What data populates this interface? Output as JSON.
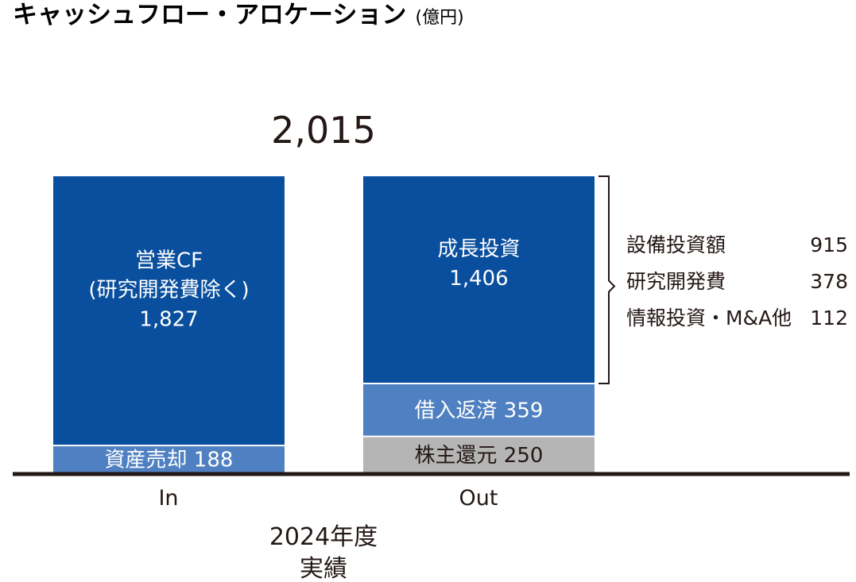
{
  "chart_data": {
    "type": "bar",
    "stacked": true,
    "title": "キャッシュフロー・アロケーション",
    "unit": "(億円)",
    "total_label": "2,015",
    "period": [
      "2024年度",
      "実績"
    ],
    "categories": [
      "In",
      "Out"
    ],
    "ylim": [
      0,
      2015
    ],
    "colors": {
      "dark_blue": "#0a4f9e",
      "light_blue": "#4f80c1",
      "gray": "#b5b5b5",
      "baseline": "#231815"
    },
    "stacks": [
      {
        "category": "In",
        "segments": [
          {
            "label": "資産売却",
            "value": 188,
            "value_label": "188",
            "color": "light_blue"
          },
          {
            "label_lines": [
              "営業CF",
              "(研究開発費除く)"
            ],
            "value": 1827,
            "value_label": "1,827",
            "color": "dark_blue"
          }
        ]
      },
      {
        "category": "Out",
        "segments": [
          {
            "label": "株主還元",
            "value": 250,
            "value_label": "250",
            "color": "gray"
          },
          {
            "label": "借入返済",
            "value": 359,
            "value_label": "359",
            "color": "light_blue"
          },
          {
            "label_lines": [
              "成長投資"
            ],
            "value": 1406,
            "value_label": "1,406",
            "color": "dark_blue"
          }
        ]
      }
    ],
    "breakdown": [
      {
        "label": "設備投資額",
        "value": 915,
        "value_label": "915"
      },
      {
        "label": "研究開発費",
        "value": 378,
        "value_label": "378"
      },
      {
        "label": "情報投資・M&A他",
        "value": 112,
        "value_label": "112"
      }
    ]
  }
}
